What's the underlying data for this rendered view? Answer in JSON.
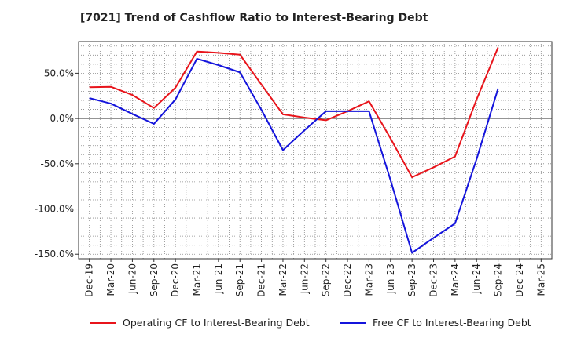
{
  "chart_data": {
    "type": "line",
    "title": "[7021]  Trend of Cashflow Ratio to Interest-Bearing Debt",
    "xlabel": "",
    "ylabel": "",
    "categories": [
      "Dec-19",
      "Mar-20",
      "Jun-20",
      "Sep-20",
      "Dec-20",
      "Mar-21",
      "Jun-21",
      "Sep-21",
      "Dec-21",
      "Mar-22",
      "Jun-22",
      "Sep-22",
      "Dec-22",
      "Mar-23",
      "Jun-23",
      "Sep-23",
      "Dec-23",
      "Mar-24",
      "Jun-24",
      "Sep-24",
      "Dec-24",
      "Mar-25"
    ],
    "yticks": [
      {
        "value": 50,
        "label": "50.0%"
      },
      {
        "value": 0,
        "label": "0.0%"
      },
      {
        "value": -50,
        "label": "-50.0%"
      },
      {
        "value": -100,
        "label": "-100.0%"
      },
      {
        "value": -150,
        "label": "-150.0%"
      }
    ],
    "ylim": [
      -155,
      85
    ],
    "grid": true,
    "legend_position": "bottom",
    "series": [
      {
        "name": "Operating CF to Interest-Bearing Debt",
        "color": "#e8141b",
        "values": [
          34.5,
          35,
          26,
          11.5,
          34,
          74,
          72.5,
          70.5,
          37.5,
          4.5,
          1,
          -2,
          8,
          19,
          -22,
          -65,
          -54,
          -42,
          21,
          78.5,
          null,
          null
        ]
      },
      {
        "name": "Free CF to Interest-Bearing Debt",
        "color": "#1414dc",
        "values": [
          22.5,
          16.5,
          5,
          -6,
          21,
          66,
          59,
          51,
          9.5,
          -35,
          -13,
          8,
          8,
          8,
          -68,
          -148.5,
          -132,
          -116,
          -45,
          33,
          null,
          null
        ]
      }
    ]
  }
}
